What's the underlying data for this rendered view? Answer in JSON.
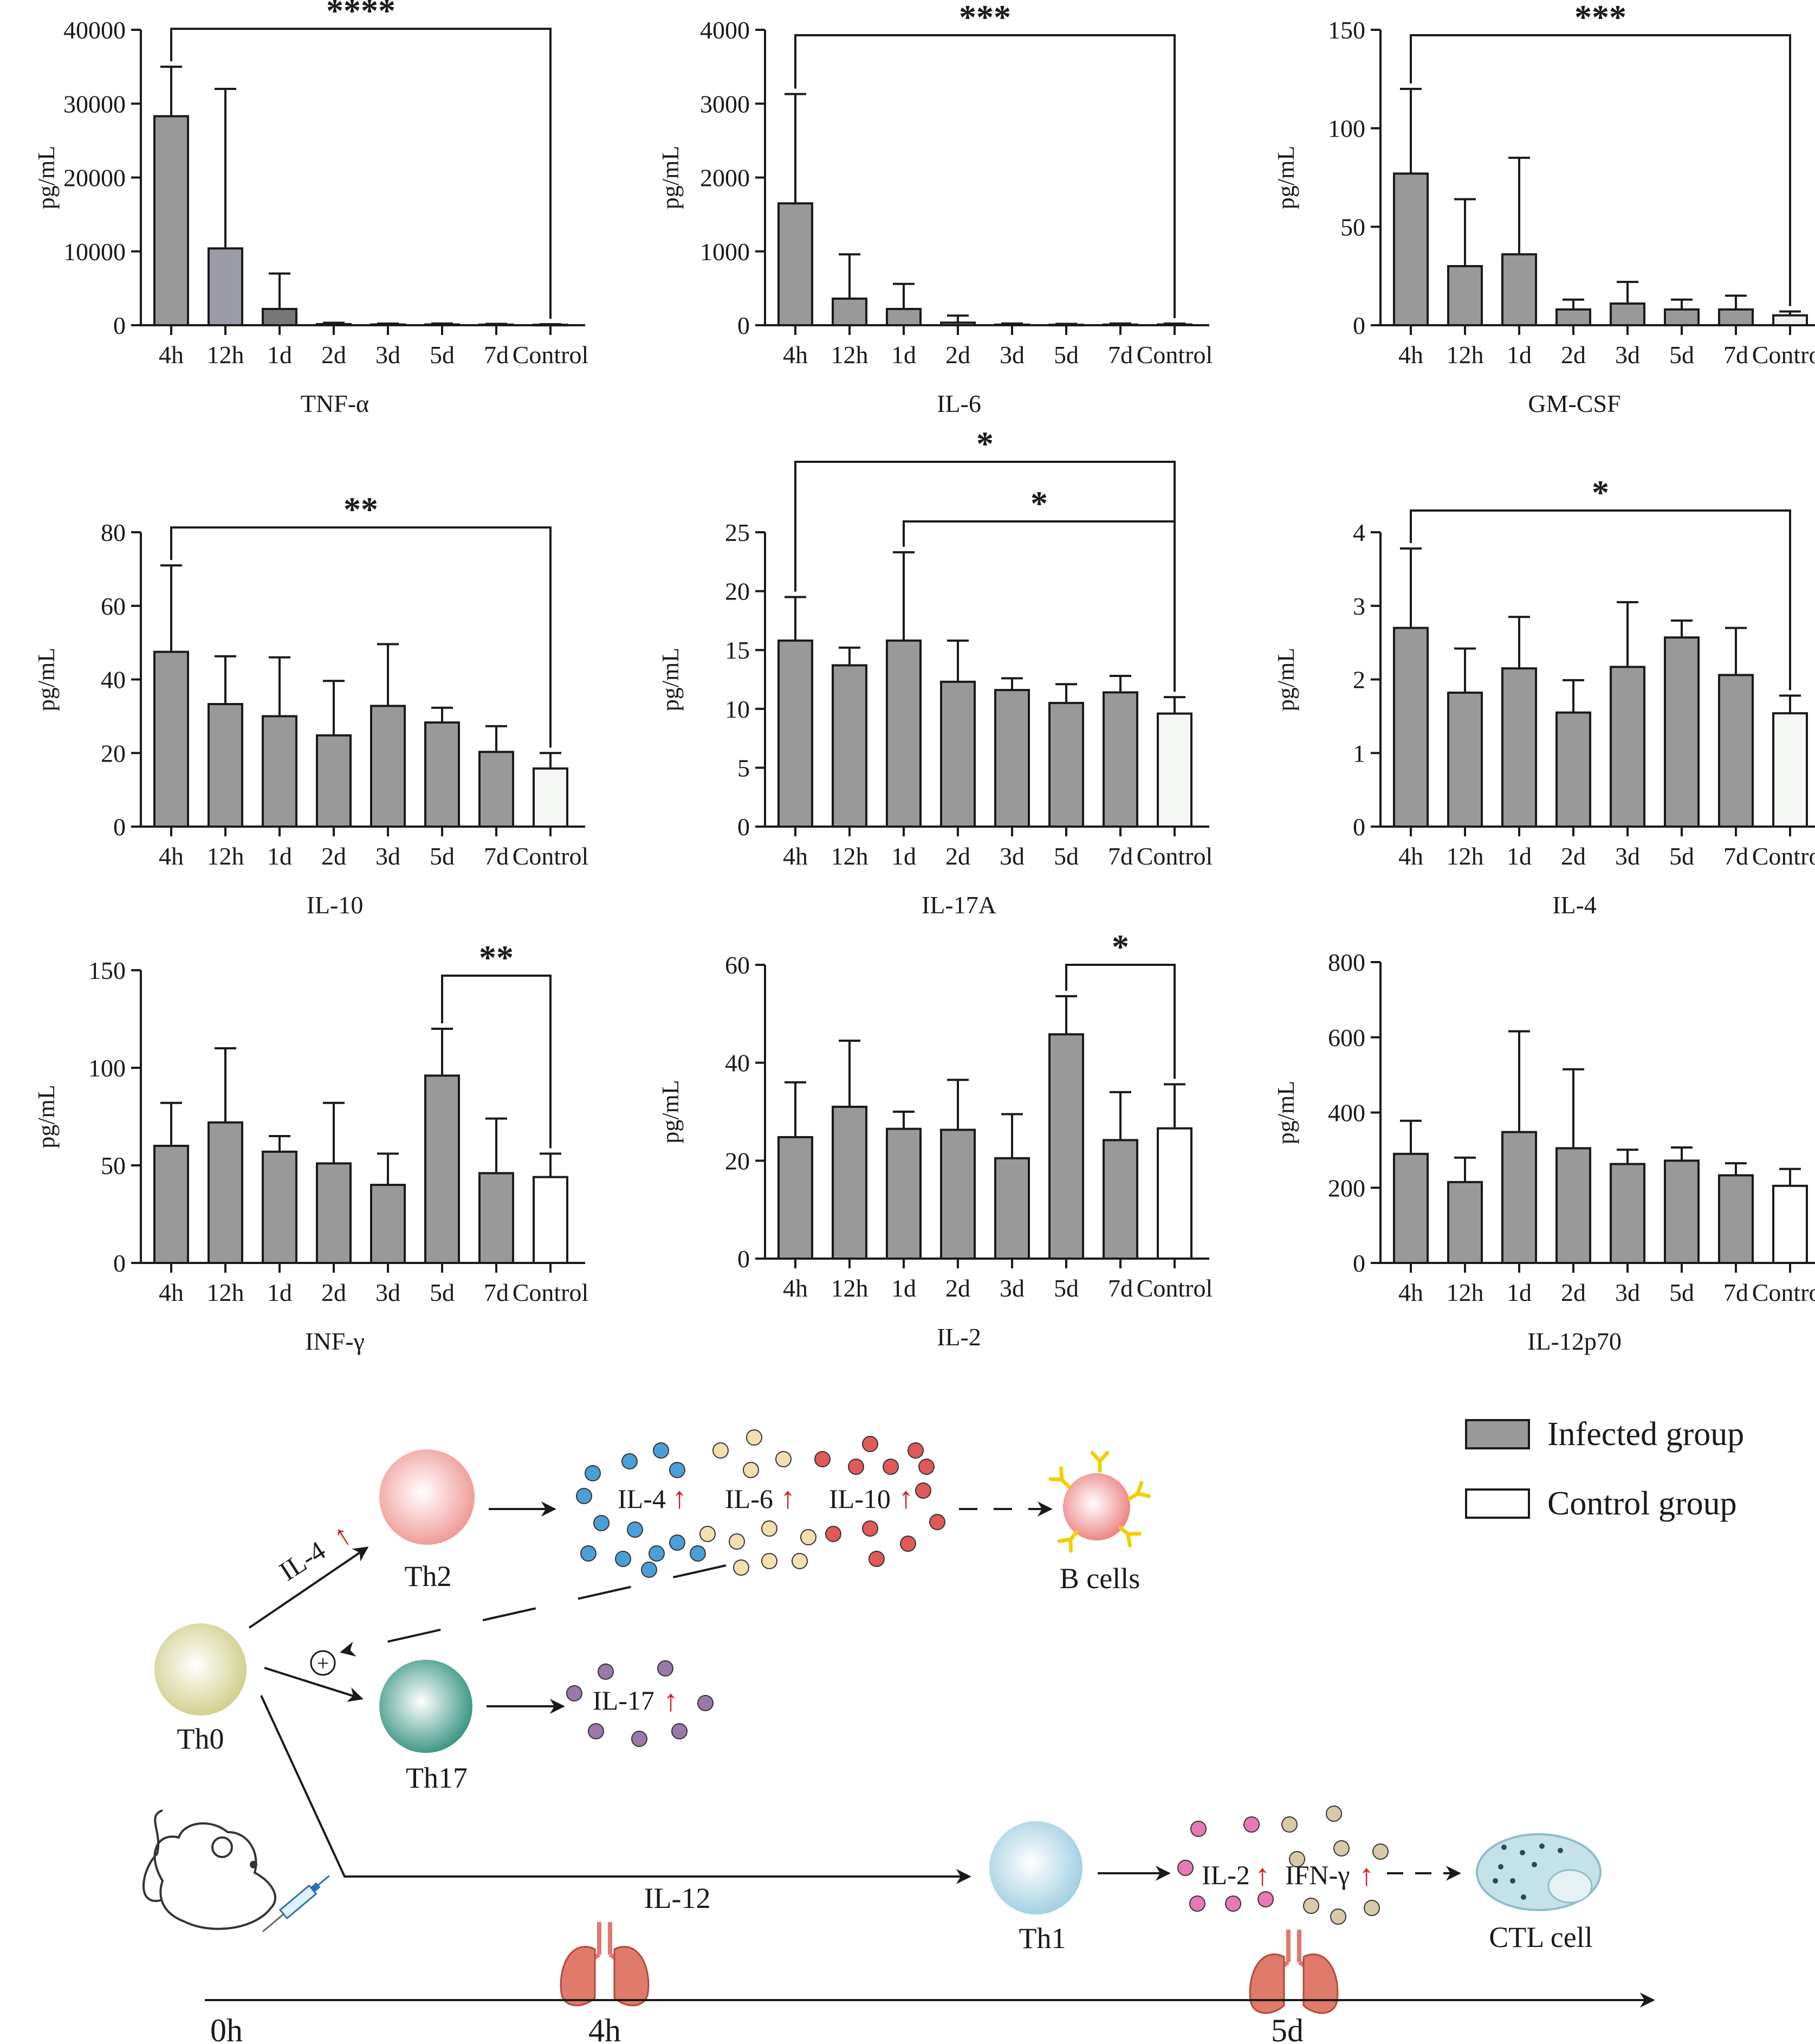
{
  "chart_data": [
    {
      "type": "bar",
      "title": "TNF-α",
      "ylabel": "pg/mL",
      "categories": [
        "4h",
        "12h",
        "1d",
        "2d",
        "3d",
        "5d",
        "7d",
        "Control"
      ],
      "values": [
        28300,
        10400,
        2200,
        150,
        100,
        100,
        80,
        60
      ],
      "errors": [
        6700,
        21600,
        4800,
        180,
        120,
        130,
        100,
        80
      ],
      "ylim": [
        0,
        40000
      ],
      "yticks": [
        0,
        10000,
        20000,
        30000,
        40000
      ],
      "bar_colors": [
        "#999999",
        "#9c9ca8",
        "#777777",
        "#999999",
        "#999999",
        "#999999",
        "#999999",
        "#f0f0f0"
      ],
      "significance": [
        {
          "from": "4h",
          "to": "Control",
          "label": "****"
        }
      ]
    },
    {
      "type": "bar",
      "title": "IL-6",
      "ylabel": "pg/mL",
      "categories": [
        "4h",
        "12h",
        "1d",
        "2d",
        "3d",
        "5d",
        "7d",
        "Control"
      ],
      "values": [
        1650,
        360,
        220,
        35,
        8,
        6,
        8,
        10
      ],
      "errors": [
        1480,
        600,
        340,
        95,
        15,
        12,
        15,
        12
      ],
      "ylim": [
        0,
        4000
      ],
      "yticks": [
        0,
        1000,
        2000,
        3000,
        4000
      ],
      "bar_colors": [
        "#999999",
        "#999999",
        "#999999",
        "#999999",
        "#999999",
        "#999999",
        "#999999",
        "#f0f0f0"
      ],
      "significance": [
        {
          "from": "4h",
          "to": "Control",
          "label": "***"
        }
      ]
    },
    {
      "type": "bar",
      "title": "GM-CSF",
      "ylabel": "pg/mL",
      "categories": [
        "4h",
        "12h",
        "1d",
        "2d",
        "3d",
        "5d",
        "7d",
        "Control"
      ],
      "values": [
        77,
        30,
        36,
        8,
        11,
        8,
        8,
        5
      ],
      "errors": [
        43,
        34,
        49,
        5,
        11,
        5,
        7,
        2
      ],
      "ylim": [
        0,
        150
      ],
      "yticks": [
        0,
        50,
        100,
        150
      ],
      "bar_colors": [
        "#999999",
        "#999999",
        "#999999",
        "#999999",
        "#999999",
        "#999999",
        "#999999",
        "#f0f0f0"
      ],
      "significance": [
        {
          "from": "4h",
          "to": "Control",
          "label": "***"
        }
      ]
    },
    {
      "type": "bar",
      "title": "IL-10",
      "ylabel": "pg/mL",
      "categories": [
        "4h",
        "12h",
        "1d",
        "2d",
        "3d",
        "5d",
        "7d",
        "Control"
      ],
      "values": [
        47.5,
        33.3,
        30,
        24.8,
        32.8,
        28.3,
        20.3,
        15.8
      ],
      "errors": [
        23.5,
        13,
        16,
        14.8,
        16.8,
        4,
        7,
        4.2
      ],
      "ylim": [
        0,
        80
      ],
      "yticks": [
        0,
        20,
        40,
        60,
        80
      ],
      "bar_colors": [
        "#999999",
        "#999999",
        "#999999",
        "#999999",
        "#999999",
        "#999999",
        "#999999",
        "#f4f7f4"
      ],
      "significance": [
        {
          "from": "4h",
          "to": "Control",
          "label": "**"
        }
      ]
    },
    {
      "type": "bar",
      "title": "IL-17A",
      "ylabel": "pg/mL",
      "categories": [
        "4h",
        "12h",
        "1d",
        "2d",
        "3d",
        "5d",
        "7d",
        "Control"
      ],
      "values": [
        15.8,
        13.7,
        15.8,
        12.3,
        11.6,
        10.5,
        11.4,
        9.6
      ],
      "errors": [
        3.7,
        1.5,
        7.5,
        3.5,
        1.0,
        1.6,
        1.4,
        1.4
      ],
      "ylim": [
        0,
        25
      ],
      "yticks": [
        0,
        5,
        10,
        15,
        20,
        25
      ],
      "bar_colors": [
        "#999999",
        "#999999",
        "#999999",
        "#999999",
        "#999999",
        "#999999",
        "#999999",
        "#f4f7f4"
      ],
      "significance": [
        {
          "from": "4h",
          "to": "Control",
          "label": "*"
        },
        {
          "from": "1d",
          "to": "Control",
          "label": "*"
        }
      ]
    },
    {
      "type": "bar",
      "title": "IL-4",
      "ylabel": "pg/mL",
      "categories": [
        "4h",
        "12h",
        "1d",
        "2d",
        "3d",
        "5d",
        "7d",
        "Control"
      ],
      "values": [
        2.7,
        1.82,
        2.15,
        1.55,
        2.17,
        2.57,
        2.06,
        1.54
      ],
      "errors": [
        1.08,
        0.6,
        0.7,
        0.44,
        0.88,
        0.23,
        0.64,
        0.24
      ],
      "ylim": [
        0,
        4
      ],
      "yticks": [
        0,
        1,
        2,
        3,
        4
      ],
      "bar_colors": [
        "#999999",
        "#999999",
        "#999999",
        "#999999",
        "#999999",
        "#999999",
        "#999999",
        "#f4f7f4"
      ],
      "significance": [
        {
          "from": "4h",
          "to": "Control",
          "label": "*"
        }
      ]
    },
    {
      "type": "bar",
      "title": "INF-γ",
      "ylabel": "pg/mL",
      "categories": [
        "4h",
        "12h",
        "1d",
        "2d",
        "3d",
        "5d",
        "7d",
        "Control"
      ],
      "values": [
        60,
        72,
        57,
        51,
        40,
        96,
        46,
        44
      ],
      "errors": [
        22,
        38,
        8,
        31,
        16,
        24,
        28,
        12
      ],
      "ylim": [
        0,
        150
      ],
      "yticks": [
        0,
        50,
        100,
        150
      ],
      "bar_colors": [
        "#999999",
        "#999999",
        "#999999",
        "#999999",
        "#999999",
        "#999999",
        "#999999",
        "#ffffff"
      ],
      "significance": [
        {
          "from": "5d",
          "to": "Control",
          "label": "**"
        }
      ]
    },
    {
      "type": "bar",
      "title": "IL-2",
      "ylabel": "pg/mL",
      "categories": [
        "4h",
        "12h",
        "1d",
        "2d",
        "3d",
        "5d",
        "7d",
        "Control"
      ],
      "values": [
        24.8,
        31,
        26.5,
        26.3,
        20.5,
        45.8,
        24.2,
        26.6
      ],
      "errors": [
        11.2,
        13.5,
        3.5,
        10.2,
        9,
        7.8,
        9.8,
        9
      ],
      "ylim": [
        0,
        60
      ],
      "yticks": [
        0,
        20,
        40,
        60
      ],
      "bar_colors": [
        "#999999",
        "#999999",
        "#999999",
        "#999999",
        "#999999",
        "#999999",
        "#999999",
        "#ffffff"
      ],
      "significance": [
        {
          "from": "5d",
          "to": "Control",
          "label": "*"
        }
      ]
    },
    {
      "type": "bar",
      "title": "IL-12p70",
      "ylabel": "pg/mL",
      "categories": [
        "4h",
        "12h",
        "1d",
        "2d",
        "3d",
        "5d",
        "7d",
        "Control"
      ],
      "values": [
        290,
        215,
        348,
        305,
        263,
        272,
        233,
        205
      ],
      "errors": [
        88,
        65,
        268,
        210,
        38,
        35,
        32,
        45
      ],
      "ylim": [
        0,
        800
      ],
      "yticks": [
        0,
        200,
        400,
        600,
        800
      ],
      "bar_colors": [
        "#999999",
        "#999999",
        "#999999",
        "#999999",
        "#999999",
        "#999999",
        "#999999",
        "#ffffff"
      ],
      "significance": []
    }
  ],
  "legend": {
    "infected": "Infected group",
    "control": "Control group",
    "infected_color": "#999999",
    "control_color": "#ffffff"
  },
  "diagram": {
    "th0": "Th0",
    "th2": "Th2",
    "th17": "Th17",
    "th1": "Th1",
    "il4_arrow_label": "IL-4",
    "il12_label": "IL-12",
    "b_cells": "B cells",
    "ctl_cell": "CTL cell",
    "th2_cytokines": [
      "IL-4",
      "IL-6",
      "IL-10"
    ],
    "th17_cytokines": [
      "IL-17"
    ],
    "th1_cytokines": [
      "IL-2",
      "IFN-γ"
    ],
    "plus_symbol": "+",
    "up_arrow": "↑",
    "timeline": [
      "0h",
      "4h",
      "5d"
    ],
    "colors": {
      "th0": "#d8d79a",
      "th2": "#f2a6a2",
      "th17": "#3f9e8c",
      "th1": "#a9d4e4",
      "b_cell": "#ef8a8a",
      "ctl": "#bfe0e8",
      "red_arrow": "#d01c1c",
      "lung": "#e07a6a",
      "dot_blue": "#4a9fd8",
      "dot_cream": "#f3dfb0",
      "dot_red": "#e05a5a",
      "dot_purple": "#9a78aa",
      "dot_pink": "#e878b8",
      "dot_tan": "#d9c9a8",
      "antibody": "#f0d000"
    }
  }
}
